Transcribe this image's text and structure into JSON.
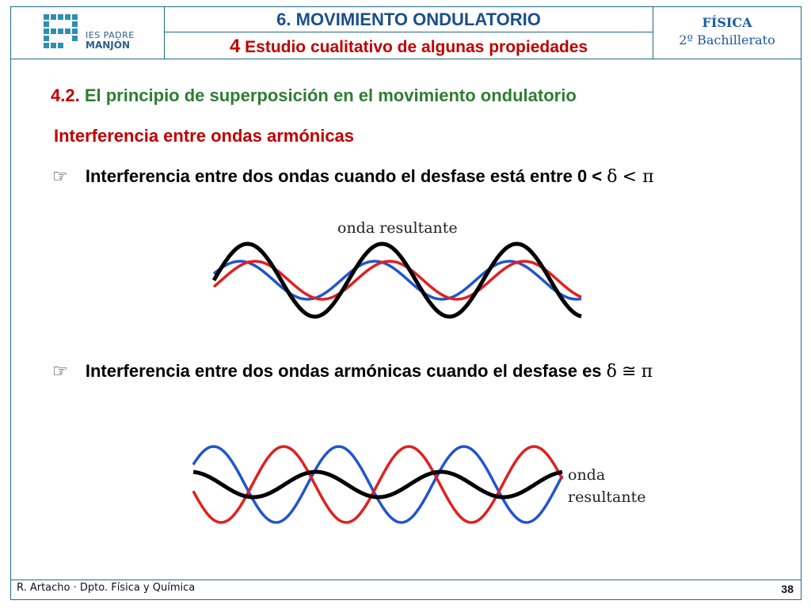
{
  "header": {
    "logo_line1": "IES PADRE",
    "logo_line2": "MANJÓN",
    "chapter_title": "6. MOVIMIENTO ONDULATORIO",
    "section_number": "4",
    "section_title": "Estudio cualitativo de algunas propiedades",
    "subject_line1": "FÍSICA",
    "subject_line2": "2º Bachillerato"
  },
  "body": {
    "heading_number": "4.2.",
    "heading_text": "El principio de superposición en el movimiento ondulatorio",
    "subheading": "Interferencia entre ondas armónicas",
    "bullet1_text": "Interferencia entre dos ondas cuando el desfase está entre 0 <",
    "bullet1_sym1": "δ",
    "bullet1_sym2": "< π",
    "bullet2_text": "Interferencia entre dos ondas armónicas cuando el desfase es",
    "bullet2_sym1": "δ",
    "bullet2_sym2": "≅",
    "bullet2_sym3": "π",
    "bullet_icon": "pointing-hand-icon",
    "diagram1_label": "onda resultante",
    "diagram2_label_line1": "onda",
    "diagram2_label_line2": "resultante"
  },
  "colors": {
    "wave_red": "#e02020",
    "wave_blue": "#2255cc",
    "wave_resultant": "#000000",
    "frame": "#1f6a8a"
  },
  "footer": {
    "author": "R. Artacho · Dpto. Física y Química",
    "page_number": "38"
  }
}
